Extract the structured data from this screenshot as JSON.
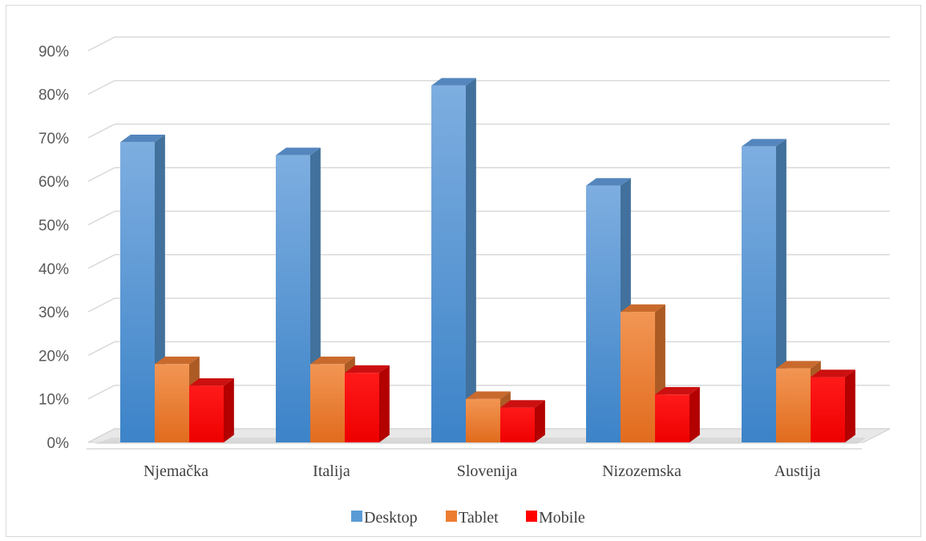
{
  "chart_data": {
    "type": "bar",
    "title": "",
    "xlabel": "",
    "ylabel": "",
    "categories": [
      "Njemačka",
      "Italija",
      "Slovenija",
      "Nizozemska",
      "Austija"
    ],
    "series": [
      {
        "name": "Desktop",
        "values": [
          69,
          66,
          82,
          59,
          68
        ]
      },
      {
        "name": "Tablet",
        "values": [
          18,
          18,
          10,
          30,
          17
        ]
      },
      {
        "name": "Mobile",
        "values": [
          13,
          16,
          8,
          11,
          15
        ]
      }
    ],
    "ylim": [
      0,
      90
    ],
    "y_ticks": [
      "0%",
      "10%",
      "20%",
      "30%",
      "40%",
      "50%",
      "60%",
      "70%",
      "80%",
      "90%"
    ],
    "grid": true,
    "legend_position": "bottom",
    "style": "3d-clustered-column",
    "colors": {
      "Desktop": "#5b9bd5",
      "Tablet": "#ed7d31",
      "Mobile": "#ff0000",
      "gridline": "#d9d9d9"
    }
  }
}
